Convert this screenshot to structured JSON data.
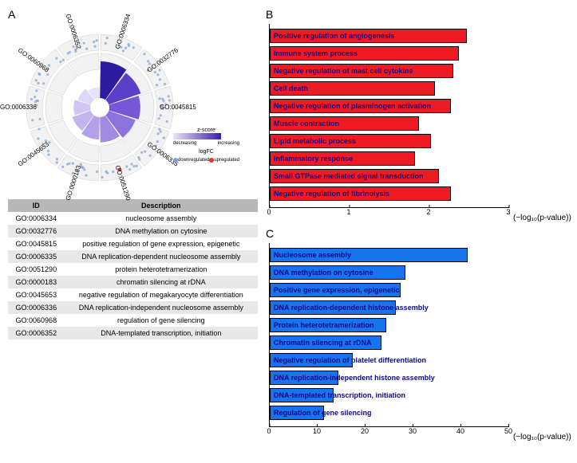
{
  "panels": {
    "A": {
      "label": "A",
      "circular": {
        "go_labels": [
          {
            "id": "GO:0006334",
            "angle": 18
          },
          {
            "id": "GO:0032776",
            "angle": 54
          },
          {
            "id": "GO:0045815",
            "angle": 90
          },
          {
            "id": "GO:0006335",
            "angle": 126
          },
          {
            "id": "GO:0051290",
            "angle": 162
          },
          {
            "id": "GO:0000183",
            "angle": 198
          },
          {
            "id": "GO:0045653",
            "angle": 234
          },
          {
            "id": "GO:0006336",
            "angle": 270
          },
          {
            "id": "GO:0060968",
            "angle": 306
          },
          {
            "id": "GO:0006352",
            "angle": 342
          }
        ],
        "wedge_colors": [
          "#2e1ca0",
          "#5a3fc8",
          "#7658d6",
          "#8c72dc",
          "#a08ae2",
          "#b2a0e8",
          "#c2b4ee",
          "#d0c6f2",
          "#ddd6f6",
          "#e8e2fa"
        ],
        "outer_dot_color": "#7ba3d4",
        "up_dot_color": "#e73030",
        "legend": {
          "zscore_title": "z-score",
          "left_label": "decreasing",
          "right_label": "increasing",
          "logfc_title": "logFC",
          "down_label": "downregulated",
          "up_label": "upregulated",
          "down_color": "#7ba3d4",
          "up_color": "#e73030"
        }
      },
      "table": {
        "headers": [
          "ID",
          "Description"
        ],
        "rows": [
          [
            "GO:0006334",
            "nucleosome assembly"
          ],
          [
            "GO:0032776",
            "DNA methylation on cytosine"
          ],
          [
            "GO:0045815",
            "positive regulation of gene expression, epigenetic"
          ],
          [
            "GO:0006335",
            "DNA replication-dependent nucleosome assembly"
          ],
          [
            "GO:0051290",
            "protein heterotetramerization"
          ],
          [
            "GO:0000183",
            "chromatin silencing at rDNA"
          ],
          [
            "GO:0045653",
            "negative regulation of megakaryocyte differentiation"
          ],
          [
            "GO:0006336",
            "DNA replication-independent nucleosome assembly"
          ],
          [
            "GO:0060968",
            "regulation of gene silencing"
          ],
          [
            "GO:0006352",
            "DNA-templated transcription, initiation"
          ]
        ]
      }
    },
    "B": {
      "label": "B",
      "bar_color": "#ed1c24",
      "text_color": "#0a0a8a",
      "xmax": 3,
      "xticks": [
        0,
        1,
        2,
        3
      ],
      "xlabel": "(−log₁₀(p-value))",
      "bars": [
        {
          "label": "Positive regulation of angiogenesis",
          "value": 2.45
        },
        {
          "label": "Immune system process",
          "value": 2.35
        },
        {
          "label": "Negative regulation of mast cell cytokine",
          "value": 2.28
        },
        {
          "label": "Cell death",
          "value": 2.05
        },
        {
          "label": "Negative regulation of plasminogen activation",
          "value": 2.25
        },
        {
          "label": "Muscle contraction",
          "value": 1.85
        },
        {
          "label": "Lipid metabolic process",
          "value": 2.0
        },
        {
          "label": "Inflammatory response",
          "value": 1.8
        },
        {
          "label": "Small GTPase mediated signal transduction",
          "value": 2.1
        },
        {
          "label": "Negative regulation of fibrinolysis",
          "value": 2.25
        }
      ]
    },
    "C": {
      "label": "C",
      "bar_color": "#1874ed",
      "text_color": "#0a0a8a",
      "xmax": 50,
      "xticks": [
        0,
        10,
        20,
        30,
        40,
        50
      ],
      "xlabel": "(−log₁₀(p-value))",
      "bars": [
        {
          "label": "Nucleosome assembly",
          "value": 41
        },
        {
          "label": "DNA methylation on cytosine",
          "value": 28
        },
        {
          "label": "Positive gene expression, epigenetic",
          "value": 27
        },
        {
          "label": "DNA replication-dependent histone assembly",
          "value": 26
        },
        {
          "label": "Protein heterotetramerization",
          "value": 24
        },
        {
          "label": "Chromatin silencing at rDNA",
          "value": 23
        },
        {
          "label": "Negative regulation of platelet differentiation",
          "value": 17
        },
        {
          "label": "DNA replication-independent histone assembly",
          "value": 14
        },
        {
          "label": "DNA-templated transcription, initiation",
          "value": 13
        },
        {
          "label": "Regulation of gene silencing",
          "value": 11
        }
      ]
    }
  }
}
